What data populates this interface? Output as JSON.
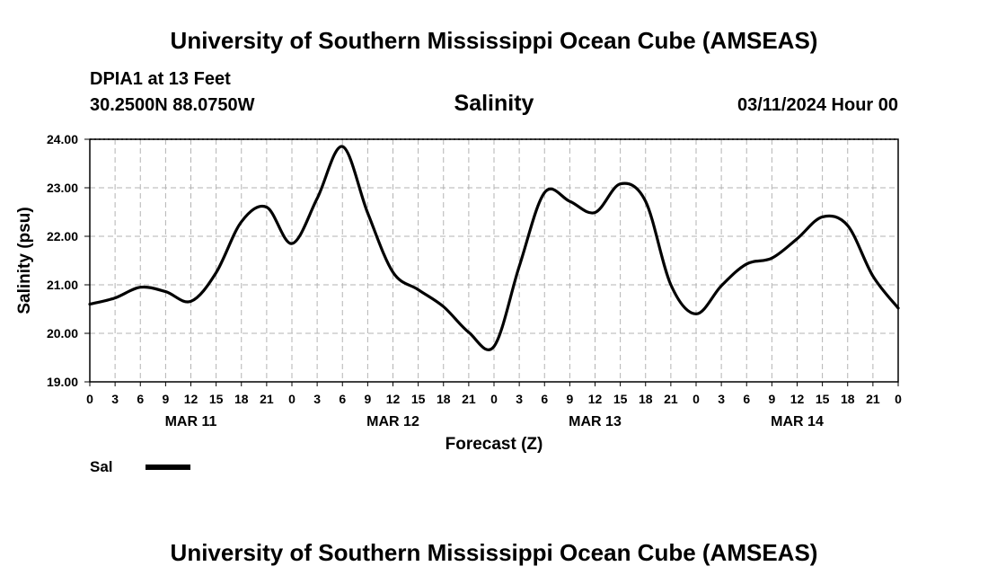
{
  "header": {
    "title": "University of Southern Mississippi Ocean Cube (AMSEAS)",
    "station": "DPIA1 at 13 Feet",
    "coords": "30.2500N  88.0750W",
    "run_time": "03/11/2024 Hour 00"
  },
  "footer": {
    "title": "University of Southern Mississippi Ocean Cube (AMSEAS)"
  },
  "legend": {
    "label": "Sal"
  },
  "chart_data": {
    "type": "line",
    "title": "Salinity",
    "xlabel": "Forecast (Z)",
    "ylabel": "Salinity (psu)",
    "xlim": [
      0,
      96
    ],
    "ylim": [
      19,
      24
    ],
    "grid": true,
    "x_tick_hours": [
      0,
      3,
      6,
      9,
      12,
      15,
      18,
      21,
      24,
      27,
      30,
      33,
      36,
      39,
      42,
      45,
      48,
      51,
      54,
      57,
      60,
      63,
      66,
      69,
      72,
      75,
      78,
      81,
      84,
      87,
      90,
      93,
      96
    ],
    "x_tick_labels": [
      "0",
      "3",
      "6",
      "9",
      "12",
      "15",
      "18",
      "21",
      "0",
      "3",
      "6",
      "9",
      "12",
      "15",
      "18",
      "21",
      "0",
      "3",
      "6",
      "9",
      "12",
      "15",
      "18",
      "21",
      "0",
      "3",
      "6",
      "9",
      "12",
      "15",
      "18",
      "21",
      "0"
    ],
    "y_ticks": [
      19,
      20,
      21,
      22,
      23,
      24
    ],
    "y_tick_labels": [
      "19.00",
      "20.00",
      "21.00",
      "22.00",
      "23.00",
      "24.00"
    ],
    "day_labels": [
      {
        "hour": 12,
        "label": "MAR 11"
      },
      {
        "hour": 36,
        "label": "MAR 12"
      },
      {
        "hour": 60,
        "label": "MAR 13"
      },
      {
        "hour": 84,
        "label": "MAR 14"
      }
    ],
    "series": [
      {
        "name": "Sal",
        "color": "#000000",
        "x": [
          0,
          3,
          6,
          9,
          12,
          15,
          18,
          21,
          24,
          27,
          30,
          33,
          36,
          39,
          42,
          45,
          48,
          51,
          54,
          57,
          60,
          63,
          66,
          69,
          72,
          75,
          78,
          81,
          84,
          87,
          90,
          93,
          96
        ],
        "values": [
          20.6,
          20.73,
          20.95,
          20.86,
          20.66,
          21.25,
          22.3,
          22.6,
          21.85,
          22.78,
          23.85,
          22.48,
          21.26,
          20.9,
          20.55,
          20.02,
          19.73,
          21.38,
          22.9,
          22.72,
          22.49,
          23.08,
          22.72,
          21.0,
          20.4,
          20.98,
          21.43,
          21.55,
          21.95,
          22.4,
          22.22,
          21.18,
          20.52
        ]
      }
    ]
  }
}
